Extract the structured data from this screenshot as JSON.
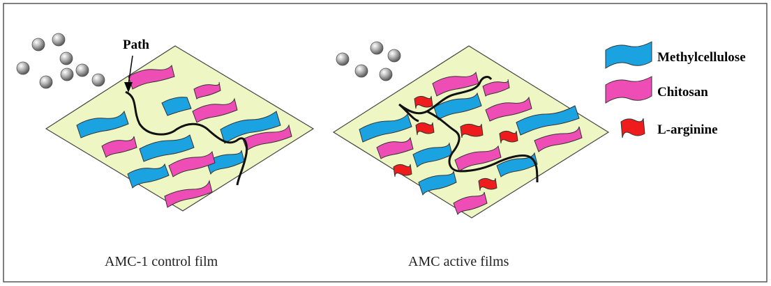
{
  "annotation": {
    "path_label": "Path"
  },
  "captions": {
    "left": "AMC-1 control film",
    "right": "AMC active films"
  },
  "legend": [
    {
      "label": "Methylcellulose",
      "color": "#1aa3e0"
    },
    {
      "label": "Chitosan",
      "color": "#ee4db5"
    },
    {
      "label": "L-arginine",
      "color": "#ee1c1c"
    }
  ],
  "colors": {
    "film": "#eef7c4",
    "methylcellulose": "#1aa3e0",
    "chitosan": "#ee4db5",
    "l_arginine": "#ee1c1c",
    "particle": "#9a9a9a"
  }
}
